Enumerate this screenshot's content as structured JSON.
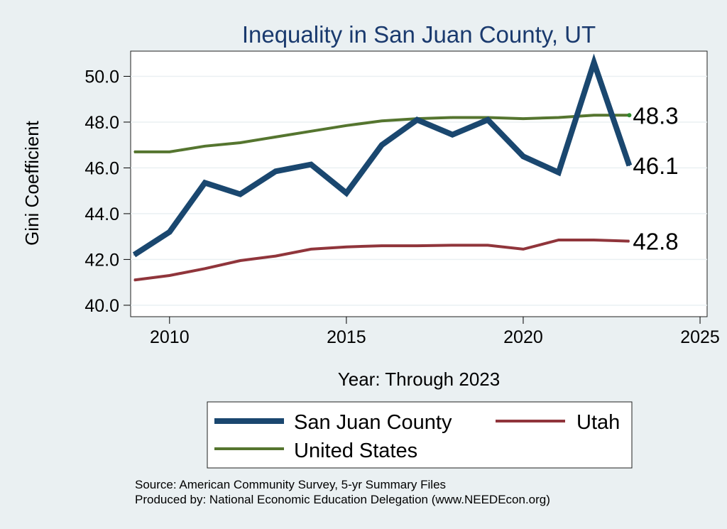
{
  "chart_data": {
    "type": "line",
    "title": "Inequality in San Juan County, UT",
    "xlabel": "Year: Through 2023",
    "ylabel": "Gini Coefficient",
    "xlim": [
      2008.9,
      2025.2
    ],
    "ylim": [
      39.5,
      51.1
    ],
    "x_ticks": [
      2010,
      2015,
      2020,
      2025
    ],
    "y_ticks": [
      40.0,
      42.0,
      44.0,
      46.0,
      48.0,
      50.0
    ],
    "x": [
      2009,
      2010,
      2011,
      2012,
      2013,
      2014,
      2015,
      2016,
      2017,
      2018,
      2019,
      2020,
      2021,
      2022,
      2023
    ],
    "series": [
      {
        "name": "San Juan County",
        "color": "#1a476f",
        "values": [
          42.2,
          43.2,
          45.35,
          44.85,
          45.85,
          46.15,
          44.9,
          47.0,
          48.1,
          47.45,
          48.1,
          46.5,
          45.8,
          50.6,
          46.1
        ],
        "end_label": "46.1"
      },
      {
        "name": "Utah",
        "color": "#90353b",
        "values": [
          41.1,
          41.3,
          41.6,
          41.95,
          42.15,
          42.45,
          42.55,
          42.6,
          42.6,
          42.62,
          42.62,
          42.45,
          42.85,
          42.85,
          42.8
        ],
        "end_label": "42.8"
      },
      {
        "name": "United States",
        "color": "#55752f",
        "values": [
          46.7,
          46.7,
          46.95,
          47.1,
          47.35,
          47.6,
          47.85,
          48.05,
          48.15,
          48.2,
          48.2,
          48.15,
          48.2,
          48.3,
          48.3
        ],
        "end_label": "48.3"
      }
    ],
    "legend": {
      "position": "bottom",
      "entries": [
        "San Juan County",
        "Utah",
        "United States"
      ]
    }
  },
  "source_note": "Source: American Community Survey, 5-yr Summary Files",
  "producer_note": "Produced by: National Economic Education Delegation (www.NEEDEcon.org)"
}
